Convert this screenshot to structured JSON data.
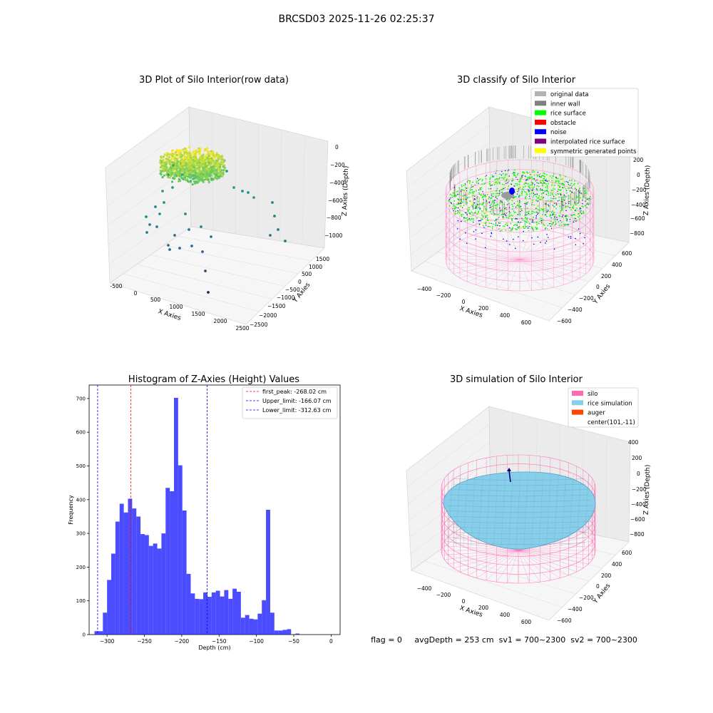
{
  "suptitle": "BRCSD03 2025-11-26 02:25:37",
  "panels": {
    "raw": {
      "title": "3D Plot of Silo Interior(row data)",
      "xlabel": "X Axies",
      "ylabel": "Y Axies",
      "zlabel": "Z Axies (Depth)",
      "xticks": [
        "-500",
        "0",
        "500",
        "1000",
        "1500",
        "2000",
        "2500"
      ],
      "yticks": [
        "1500",
        "1000",
        "500",
        "0",
        "−500",
        "−1000",
        "−1500",
        "−2000",
        "−2500"
      ],
      "zticks": [
        "0",
        "−200",
        "−400",
        "−600",
        "−800",
        "−1000"
      ]
    },
    "classify": {
      "title": "3D classify of Silo Interior",
      "xlabel": "X Axies",
      "ylabel": "Y Axies",
      "zlabel": "Z Axies (Depth)",
      "xticks": [
        "−400",
        "−200",
        "0",
        "200",
        "400",
        "600"
      ],
      "yticks": [
        "600",
        "400",
        "200",
        "0",
        "−200",
        "−400",
        "−600"
      ],
      "zticks": [
        "200",
        "0",
        "−200",
        "−400",
        "−600",
        "−800"
      ],
      "legend": [
        {
          "label": "original data",
          "color": "#b3b3b3"
        },
        {
          "label": "inner wall",
          "color": "#808080"
        },
        {
          "label": "rice surface",
          "color": "#00ff00"
        },
        {
          "label": "obstacle",
          "color": "#ff0000"
        },
        {
          "label": "noise",
          "color": "#0000ff"
        },
        {
          "label": "interpolated rice surface",
          "color": "#800080"
        },
        {
          "label": "symmetric generated points",
          "color": "#ffff00"
        }
      ]
    },
    "simulation": {
      "title": "3D simulation of Silo Interior",
      "xlabel": "X Axies",
      "ylabel": "Y Axies",
      "zlabel": "Z Axies (Depth)",
      "xticks": [
        "−400",
        "−200",
        "0",
        "200",
        "400",
        "600"
      ],
      "yticks": [
        "600",
        "400",
        "200",
        "0",
        "−200",
        "−400",
        "−600"
      ],
      "zticks": [
        "400",
        "200",
        "0",
        "−200",
        "−400",
        "−600",
        "−800"
      ],
      "legend": [
        {
          "label": "silo",
          "color": "#ff69b4"
        },
        {
          "label": "rice simulation",
          "color": "#87ceeb"
        },
        {
          "label": "auger",
          "color": "#ff4500"
        },
        {
          "label": "center(101,-11)",
          "color": ""
        }
      ]
    }
  },
  "status_line": "flag = 0     avgDepth = 253 cm  sv1 = 700~2300  sv2 = 700~2300",
  "chart_data": {
    "type": "bar",
    "title": "Histogram of Z-Axies (Height) Values",
    "xlabel": "Depth (cm)",
    "ylabel": "Frequency",
    "xlim": [
      -324,
      12
    ],
    "ylim": [
      0,
      740
    ],
    "xticks": [
      -300,
      -250,
      -200,
      -150,
      -100,
      -50,
      0
    ],
    "yticks": [
      0,
      100,
      200,
      300,
      400,
      500,
      600,
      700
    ],
    "bar_color": "#0000ff",
    "bins": [
      {
        "x0": -316.8,
        "x1": -311.2,
        "count": 10
      },
      {
        "x0": -311.2,
        "x1": -305.6,
        "count": 10
      },
      {
        "x0": -305.6,
        "x1": -300.0,
        "count": 65
      },
      {
        "x0": -300.0,
        "x1": -294.4,
        "count": 162
      },
      {
        "x0": -294.4,
        "x1": -288.8,
        "count": 240
      },
      {
        "x0": -288.8,
        "x1": -283.2,
        "count": 335
      },
      {
        "x0": -283.2,
        "x1": -277.6,
        "count": 388
      },
      {
        "x0": -277.6,
        "x1": -272.0,
        "count": 362
      },
      {
        "x0": -272.0,
        "x1": -266.4,
        "count": 403
      },
      {
        "x0": -266.4,
        "x1": -260.8,
        "count": 374
      },
      {
        "x0": -260.8,
        "x1": -255.2,
        "count": 350
      },
      {
        "x0": -255.2,
        "x1": -249.6,
        "count": 298
      },
      {
        "x0": -249.6,
        "x1": -244.0,
        "count": 295
      },
      {
        "x0": -244.0,
        "x1": -238.4,
        "count": 263
      },
      {
        "x0": -238.4,
        "x1": -232.8,
        "count": 270
      },
      {
        "x0": -232.8,
        "x1": -227.2,
        "count": 255
      },
      {
        "x0": -227.2,
        "x1": -221.6,
        "count": 300
      },
      {
        "x0": -221.6,
        "x1": -216.0,
        "count": 435
      },
      {
        "x0": -216.0,
        "x1": -210.4,
        "count": 425
      },
      {
        "x0": -210.4,
        "x1": -204.8,
        "count": 702
      },
      {
        "x0": -204.8,
        "x1": -199.2,
        "count": 502
      },
      {
        "x0": -199.2,
        "x1": -193.6,
        "count": 368
      },
      {
        "x0": -193.6,
        "x1": -188.0,
        "count": 180
      },
      {
        "x0": -188.0,
        "x1": -182.4,
        "count": 122
      },
      {
        "x0": -182.4,
        "x1": -176.8,
        "count": 106
      },
      {
        "x0": -176.8,
        "x1": -171.2,
        "count": 105
      },
      {
        "x0": -171.2,
        "x1": -165.6,
        "count": 125
      },
      {
        "x0": -165.6,
        "x1": -160.0,
        "count": 112
      },
      {
        "x0": -160.0,
        "x1": -154.4,
        "count": 125
      },
      {
        "x0": -154.4,
        "x1": -148.8,
        "count": 130
      },
      {
        "x0": -148.8,
        "x1": -143.2,
        "count": 113
      },
      {
        "x0": -143.2,
        "x1": -137.6,
        "count": 132
      },
      {
        "x0": -137.6,
        "x1": -132.0,
        "count": 106
      },
      {
        "x0": -132.0,
        "x1": -126.4,
        "count": 136
      },
      {
        "x0": -126.4,
        "x1": -120.8,
        "count": 127
      },
      {
        "x0": -120.8,
        "x1": -115.2,
        "count": 50
      },
      {
        "x0": -115.2,
        "x1": -109.6,
        "count": 58
      },
      {
        "x0": -109.6,
        "x1": -104.0,
        "count": 47
      },
      {
        "x0": -104.0,
        "x1": -98.4,
        "count": 45
      },
      {
        "x0": -98.4,
        "x1": -92.8,
        "count": 62
      },
      {
        "x0": -92.8,
        "x1": -87.2,
        "count": 102
      },
      {
        "x0": -87.2,
        "x1": -81.6,
        "count": 370
      },
      {
        "x0": -81.6,
        "x1": -76.0,
        "count": 65
      },
      {
        "x0": -76.0,
        "x1": -70.4,
        "count": 12
      },
      {
        "x0": -70.4,
        "x1": -64.8,
        "count": 12
      },
      {
        "x0": -64.8,
        "x1": -59.2,
        "count": 14
      },
      {
        "x0": -59.2,
        "x1": -53.6,
        "count": 16
      },
      {
        "x0": -53.6,
        "x1": -48.0,
        "count": 0
      },
      {
        "x0": -48.0,
        "x1": -42.4,
        "count": 3
      }
    ],
    "vlines": [
      {
        "label": "first_peak: -268.02 cm",
        "x": -268.02,
        "color": "#ff0000"
      },
      {
        "label": "Upper_limit: -166.07 cm",
        "x": -166.07,
        "color": "#0000ff"
      },
      {
        "label": "Lower_limit: -312.63 cm",
        "x": -312.63,
        "color": "#0000ff"
      }
    ]
  }
}
